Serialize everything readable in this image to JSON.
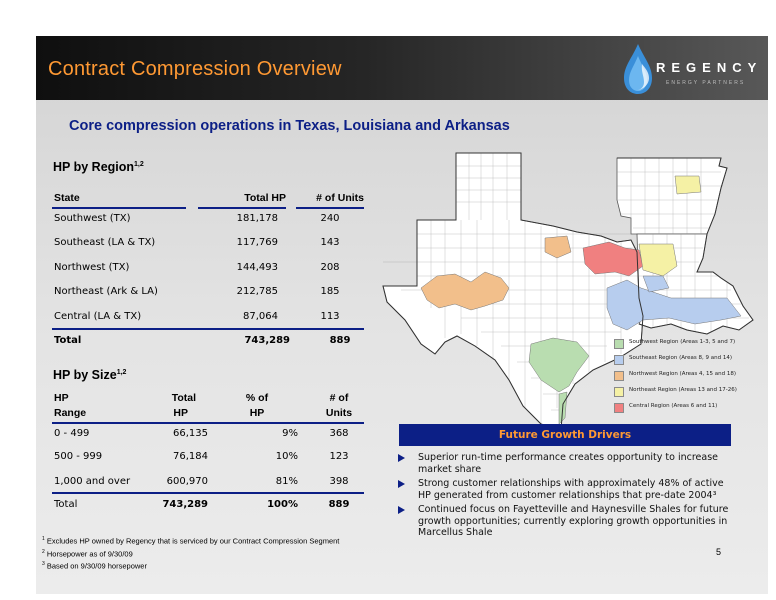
{
  "header": {
    "title": "Contract Compression Overview",
    "logo_name": "REGENCY",
    "logo_sub": "ENERGY PARTNERS",
    "bg_color": "#1a1a1a",
    "accent_color": "#ff9933"
  },
  "subtitle": "Core compression operations in Texas, Louisiana and Arkansas",
  "region_table": {
    "title": "HP by Region",
    "title_sup": "1,2",
    "headers": [
      "State",
      "Total HP",
      "# of Units"
    ],
    "rows": [
      [
        "Southwest (TX)",
        "181,178",
        "240"
      ],
      [
        "Southeast (LA & TX)",
        "117,769",
        "143"
      ],
      [
        "Northwest (TX)",
        "144,493",
        "208"
      ],
      [
        "Northeast (Ark & LA)",
        "212,785",
        "185"
      ],
      [
        "Central (LA & TX)",
        "87,064",
        "113"
      ]
    ],
    "total": [
      "Total",
      "743,289",
      "889"
    ]
  },
  "size_table": {
    "title": "HP by Size",
    "title_sup": "1,2",
    "headers_line1": [
      "HP",
      "Total",
      "% of",
      "# of"
    ],
    "headers_line2": [
      "Range",
      "HP",
      "HP",
      "Units"
    ],
    "rows": [
      [
        "0 - 499",
        "66,135",
        "9%",
        "368"
      ],
      [
        "500 - 999",
        "76,184",
        "10%",
        "123"
      ],
      [
        "1,000 and over",
        "600,970",
        "81%",
        "398"
      ]
    ],
    "total": [
      "Total",
      "743,289",
      "100%",
      "889"
    ]
  },
  "legend": [
    {
      "label": "Southwest Region (Areas 1-3, 5 and 7)",
      "color": "#b9ddb0"
    },
    {
      "label": "Southeast Region (Areas 8, 9 and 14)",
      "color": "#b7cdee"
    },
    {
      "label": "Northwest Region (Areas 4, 15 and 18)",
      "color": "#f2bf8b"
    },
    {
      "label": "Northeast Region (Areas 13 and 17-26)",
      "color": "#f5f1a5"
    },
    {
      "label": "Central Region (Areas 6 and 11)",
      "color": "#f08080"
    }
  ],
  "drivers": {
    "title": "Future Growth Drivers",
    "items": [
      "Superior run-time performance creates opportunity to increase market share",
      "Strong customer relationships with approximately 48% of active HP generated from customer relationships that pre-date 2004³",
      "Continued focus on Fayetteville and Haynesville Shales for future growth opportunities; currently exploring growth opportunities in Marcellus Shale"
    ]
  },
  "footnotes": [
    {
      "num": "1",
      "text": "Excludes HP owned by Regency that is serviced by our Contract Compression Segment"
    },
    {
      "num": "2",
      "text": "Horsepower as of 9/30/09"
    },
    {
      "num": "3",
      "text": "Based on 9/30/09 horsepower"
    }
  ],
  "page_number": "5"
}
